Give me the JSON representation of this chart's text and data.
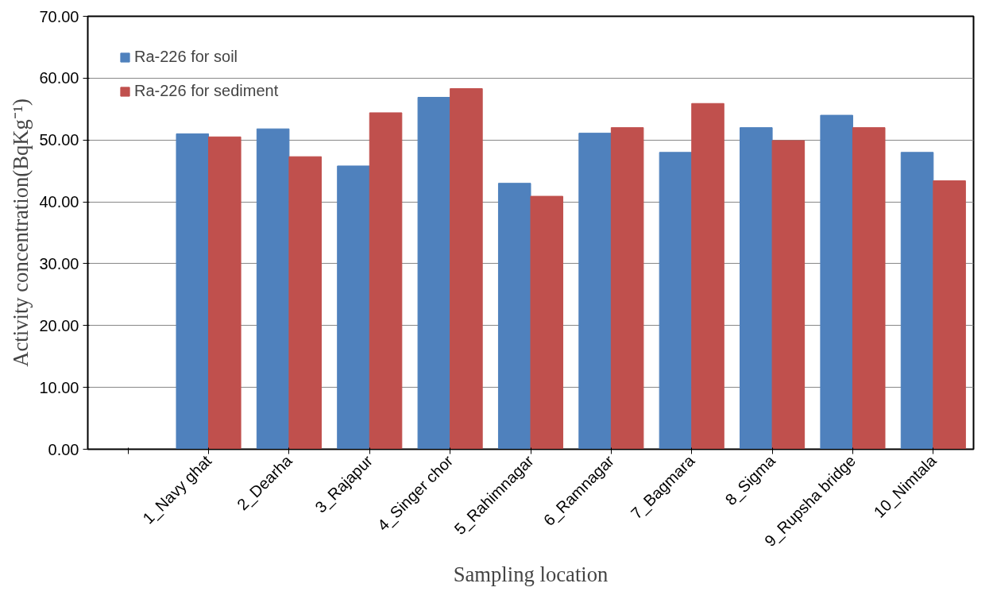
{
  "chart_data": {
    "type": "bar",
    "xlabel": "Sampling location",
    "ylabel": "Activity concentration(BqKg⁻¹)",
    "categories": [
      null,
      "1_Navy ghat",
      "2_Dearha",
      "3_Rajapur",
      "4_Singer chor",
      "5_Rahimnagar",
      "6_Ramnagar",
      "7_Bagmara",
      "8_Sigma",
      "9_Rupsha bridge",
      "10_Nimtala"
    ],
    "series": [
      {
        "name": "Ra-226 for soil",
        "color": "#4f81bd",
        "values": [
          null,
          51.0,
          51.8,
          45.8,
          56.9,
          43.0,
          51.1,
          48.0,
          52.0,
          54.0,
          48.0
        ]
      },
      {
        "name": "Ra-226 for sediment",
        "color": "#c0504d",
        "values": [
          null,
          50.5,
          47.3,
          54.4,
          58.3,
          40.9,
          52.0,
          55.9,
          49.9,
          52.0,
          43.4
        ]
      }
    ],
    "ylim": [
      0,
      70
    ],
    "yticks": [
      {
        "value": 0,
        "label": "0.00"
      },
      {
        "value": 10,
        "label": "10.00"
      },
      {
        "value": 20,
        "label": "20.00"
      },
      {
        "value": 30,
        "label": "30.00"
      },
      {
        "value": 40,
        "label": "40.00"
      },
      {
        "value": 50,
        "label": "50.00"
      },
      {
        "value": 60,
        "label": "60.00"
      },
      {
        "value": 70,
        "label": "70.00"
      }
    ],
    "grid": "y",
    "legend": "top left"
  }
}
